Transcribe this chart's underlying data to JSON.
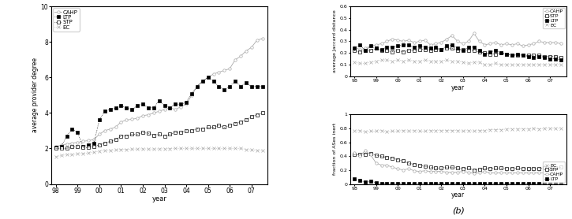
{
  "years": [
    1998.0,
    1998.25,
    1998.5,
    1998.75,
    1999.0,
    1999.25,
    1999.5,
    1999.75,
    2000.0,
    2000.25,
    2000.5,
    2000.75,
    2001.0,
    2001.25,
    2001.5,
    2001.75,
    2002.0,
    2002.25,
    2002.5,
    2002.75,
    2003.0,
    2003.25,
    2003.5,
    2003.75,
    2004.0,
    2004.25,
    2004.5,
    2004.75,
    2005.0,
    2005.25,
    2005.5,
    2005.75,
    2006.0,
    2006.25,
    2006.5,
    2006.75,
    2007.0,
    2007.25,
    2007.5
  ],
  "panel_a": {
    "CAHP": [
      2.1,
      2.2,
      2.25,
      2.3,
      2.35,
      2.4,
      2.45,
      2.5,
      2.8,
      3.0,
      3.1,
      3.2,
      3.5,
      3.6,
      3.65,
      3.7,
      3.85,
      3.9,
      4.0,
      4.1,
      4.2,
      4.3,
      4.2,
      4.35,
      4.5,
      5.0,
      5.5,
      5.8,
      6.0,
      6.2,
      6.3,
      6.4,
      6.5,
      7.0,
      7.2,
      7.5,
      7.7,
      8.1,
      8.2
    ],
    "LTP": [
      2.05,
      2.1,
      2.7,
      3.1,
      2.9,
      2.1,
      2.2,
      2.3,
      3.6,
      4.1,
      4.2,
      4.3,
      4.4,
      4.3,
      4.2,
      4.4,
      4.5,
      4.3,
      4.3,
      4.7,
      4.4,
      4.3,
      4.5,
      4.5,
      4.6,
      5.1,
      5.5,
      5.8,
      6.0,
      5.8,
      5.5,
      5.3,
      5.5,
      5.8,
      5.5,
      5.7,
      5.5,
      5.5,
      5.5
    ],
    "STP": [
      2.0,
      2.0,
      2.0,
      2.1,
      2.1,
      2.05,
      2.05,
      2.1,
      2.2,
      2.3,
      2.4,
      2.5,
      2.7,
      2.7,
      2.8,
      2.8,
      2.9,
      2.85,
      2.75,
      2.8,
      2.7,
      2.8,
      2.9,
      2.9,
      3.0,
      3.0,
      3.1,
      3.1,
      3.2,
      3.2,
      3.3,
      3.2,
      3.3,
      3.4,
      3.5,
      3.6,
      3.8,
      3.9,
      4.0
    ],
    "EC": [
      1.55,
      1.6,
      1.65,
      1.65,
      1.7,
      1.72,
      1.75,
      1.78,
      1.85,
      1.87,
      1.9,
      1.92,
      1.95,
      1.95,
      1.97,
      1.97,
      1.98,
      1.97,
      1.97,
      1.98,
      1.98,
      1.99,
      2.0,
      2.0,
      2.0,
      2.0,
      2.0,
      2.01,
      2.0,
      2.01,
      2.0,
      2.01,
      2.0,
      2.0,
      2.0,
      1.95,
      1.92,
      1.9,
      1.88
    ]
  },
  "panel_b_top": {
    "CAHP": [
      0.25,
      0.23,
      0.24,
      0.26,
      0.27,
      0.28,
      0.3,
      0.32,
      0.31,
      0.3,
      0.31,
      0.29,
      0.3,
      0.31,
      0.27,
      0.28,
      0.29,
      0.32,
      0.35,
      0.3,
      0.28,
      0.3,
      0.37,
      0.3,
      0.27,
      0.28,
      0.29,
      0.27,
      0.28,
      0.27,
      0.28,
      0.26,
      0.27,
      0.28,
      0.3,
      0.29,
      0.29,
      0.29,
      0.28
    ],
    "STP": [
      0.22,
      0.21,
      0.22,
      0.22,
      0.24,
      0.22,
      0.22,
      0.21,
      0.22,
      0.21,
      0.22,
      0.22,
      0.23,
      0.23,
      0.22,
      0.23,
      0.23,
      0.24,
      0.24,
      0.22,
      0.23,
      0.22,
      0.22,
      0.21,
      0.2,
      0.19,
      0.19,
      0.2,
      0.19,
      0.18,
      0.18,
      0.18,
      0.18,
      0.18,
      0.18,
      0.17,
      0.17,
      0.17,
      0.16
    ],
    "LTP": [
      0.24,
      0.27,
      0.22,
      0.26,
      0.24,
      0.23,
      0.25,
      0.25,
      0.26,
      0.27,
      0.27,
      0.25,
      0.26,
      0.25,
      0.24,
      0.25,
      0.23,
      0.26,
      0.27,
      0.24,
      0.22,
      0.25,
      0.25,
      0.22,
      0.19,
      0.21,
      0.22,
      0.2,
      0.19,
      0.18,
      0.19,
      0.18,
      0.17,
      0.16,
      0.17,
      0.16,
      0.15,
      0.15,
      0.14
    ],
    "EC": [
      0.12,
      0.11,
      0.11,
      0.12,
      0.13,
      0.14,
      0.14,
      0.13,
      0.14,
      0.13,
      0.14,
      0.13,
      0.13,
      0.14,
      0.13,
      0.13,
      0.13,
      0.14,
      0.13,
      0.13,
      0.12,
      0.11,
      0.12,
      0.12,
      0.1,
      0.1,
      0.11,
      0.1,
      0.1,
      0.1,
      0.1,
      0.1,
      0.1,
      0.1,
      0.1,
      0.1,
      0.1,
      0.1,
      0.1
    ]
  },
  "panel_b_bot": {
    "EC": [
      0.76,
      0.77,
      0.75,
      0.76,
      0.76,
      0.77,
      0.75,
      0.76,
      0.76,
      0.77,
      0.76,
      0.77,
      0.76,
      0.76,
      0.77,
      0.77,
      0.77,
      0.77,
      0.77,
      0.77,
      0.76,
      0.77,
      0.76,
      0.77,
      0.77,
      0.78,
      0.78,
      0.78,
      0.79,
      0.79,
      0.79,
      0.79,
      0.79,
      0.8,
      0.79,
      0.8,
      0.8,
      0.8,
      0.8
    ],
    "STP": [
      0.42,
      0.43,
      0.43,
      0.44,
      0.41,
      0.4,
      0.38,
      0.37,
      0.35,
      0.33,
      0.3,
      0.28,
      0.27,
      0.25,
      0.24,
      0.23,
      0.23,
      0.24,
      0.24,
      0.23,
      0.22,
      0.23,
      0.2,
      0.21,
      0.23,
      0.22,
      0.23,
      0.23,
      0.22,
      0.22,
      0.23,
      0.22,
      0.22,
      0.22,
      0.22,
      0.23,
      0.22,
      0.23,
      0.24
    ],
    "CAHP": [
      0.45,
      0.4,
      0.48,
      0.42,
      0.3,
      0.27,
      0.27,
      0.24,
      0.22,
      0.2,
      0.22,
      0.19,
      0.18,
      0.19,
      0.18,
      0.18,
      0.18,
      0.17,
      0.17,
      0.17,
      0.18,
      0.17,
      0.15,
      0.16,
      0.18,
      0.16,
      0.16,
      0.16,
      0.16,
      0.16,
      0.16,
      0.16,
      0.16,
      0.16,
      0.16,
      0.16,
      0.15,
      0.16,
      0.16
    ],
    "LTP": [
      0.07,
      0.05,
      0.03,
      0.04,
      0.02,
      0.01,
      0.01,
      0.01,
      0.01,
      0.01,
      0.01,
      0.01,
      0.01,
      0.01,
      0.01,
      0.01,
      0.01,
      0.01,
      0.01,
      0.01,
      0.01,
      0.01,
      0.01,
      0.01,
      0.01,
      0.01,
      0.01,
      0.01,
      0.01,
      0.01,
      0.01,
      0.01,
      0.01,
      0.01,
      0.01,
      0.01,
      0.01,
      0.01,
      0.01
    ]
  },
  "xtick_labels": [
    "98",
    "99",
    "00",
    "01",
    "02",
    "03",
    "04",
    "05",
    "06",
    "07"
  ],
  "xtick_positions": [
    1998,
    1999,
    2000,
    2001,
    2002,
    2003,
    2004,
    2005,
    2006,
    2007
  ],
  "line_color": "#aaaaaa",
  "marker_color": "#000000"
}
